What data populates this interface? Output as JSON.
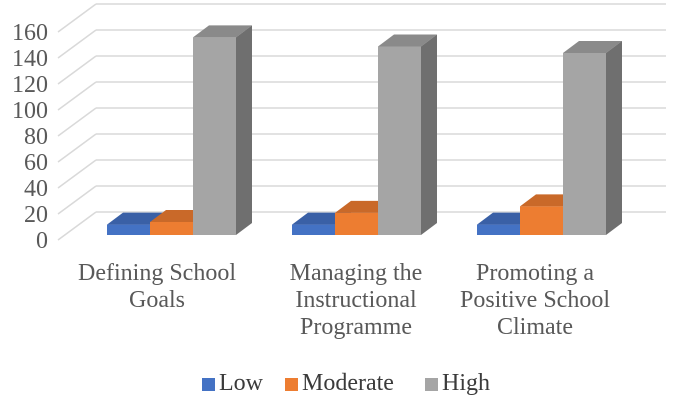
{
  "chart_data": {
    "type": "bar",
    "style": "3d-clustered-column",
    "title": "",
    "categories": [
      "Defining School Goals",
      "Managing the Instructional Programme",
      "Promoting a Positive School Climate"
    ],
    "category_display_lines": [
      [
        "Defining School",
        "Goals"
      ],
      [
        "Managing the",
        "Instructional",
        "Programme"
      ],
      [
        "Promoting a",
        "Positive School",
        "Climate"
      ]
    ],
    "series": [
      {
        "name": "Low",
        "color": "#4472C4",
        "top_color": "#3A60A6",
        "side_color": "#2F4E87",
        "values": [
          8,
          8,
          8
        ]
      },
      {
        "name": "Moderate",
        "color": "#ED7D31",
        "top_color": "#C96929",
        "side_color": "#A35522",
        "values": [
          10,
          17,
          22
        ]
      },
      {
        "name": "High",
        "color": "#A5A5A5",
        "top_color": "#8A8A8A",
        "side_color": "#6F6F6F",
        "values": [
          152,
          145,
          140
        ]
      }
    ],
    "y_axis": {
      "min": 0,
      "max": 160,
      "step": 20,
      "tick_labels": [
        "0",
        "20",
        "40",
        "60",
        "80",
        "100",
        "120",
        "140",
        "160"
      ]
    },
    "legend": {
      "position": "bottom",
      "labels": [
        "Low",
        "Moderate",
        "High"
      ]
    },
    "grid": true,
    "gridline_color": "#D9D9D9",
    "axis_text_color": "#595959",
    "legend_text_color": "#3B3B3B",
    "background_color": "#FFFFFF"
  }
}
